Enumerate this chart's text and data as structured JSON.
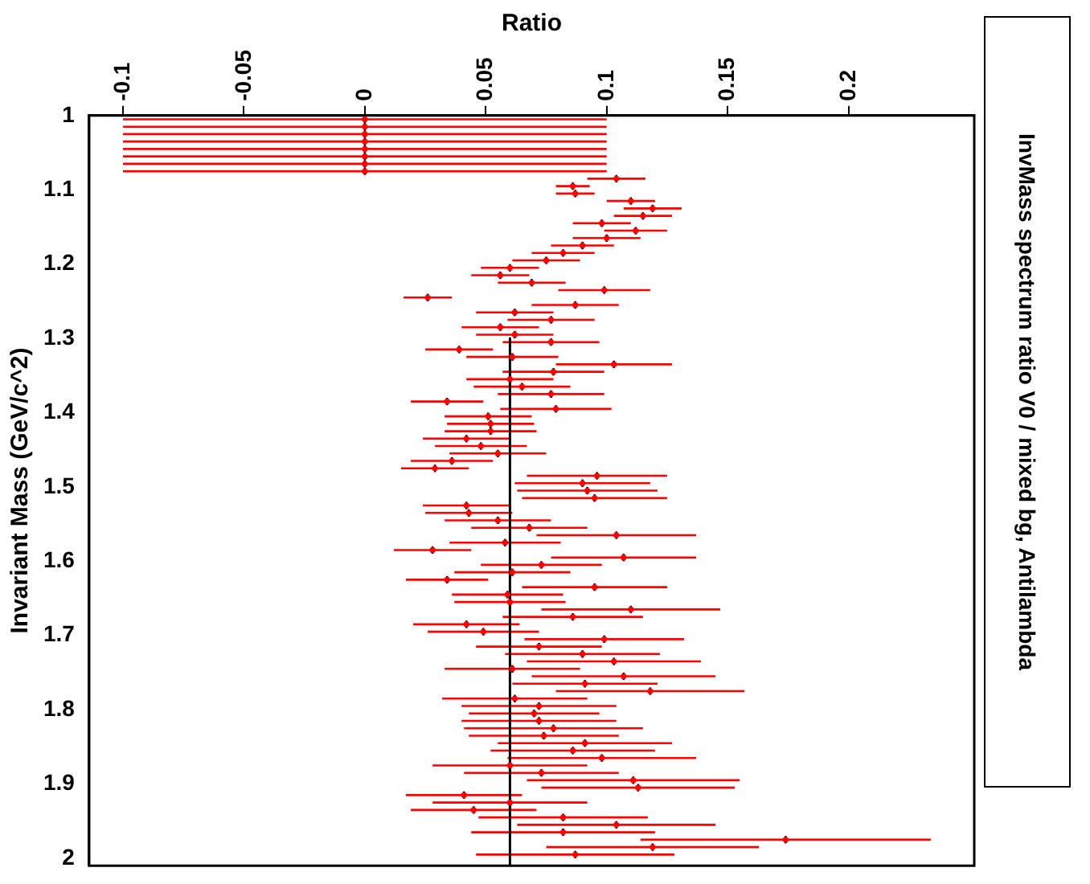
{
  "chart_data": {
    "type": "scatter",
    "orientation": "horizontal",
    "title": "InvMass spectrum ratio V0 / mixed bg, Antilambda",
    "xlabel": "Ratio",
    "ylabel": "Invariant Mass (GeV/c^2)",
    "x": [
      1.005,
      1.015,
      1.025,
      1.035,
      1.045,
      1.055,
      1.065,
      1.075,
      1.085,
      1.095,
      1.105,
      1.115,
      1.125,
      1.135,
      1.145,
      1.155,
      1.165,
      1.175,
      1.185,
      1.195,
      1.205,
      1.215,
      1.225,
      1.235,
      1.245,
      1.255,
      1.265,
      1.275,
      1.285,
      1.295,
      1.305,
      1.315,
      1.325,
      1.335,
      1.345,
      1.355,
      1.365,
      1.375,
      1.385,
      1.395,
      1.405,
      1.415,
      1.425,
      1.435,
      1.445,
      1.455,
      1.465,
      1.475,
      1.485,
      1.495,
      1.505,
      1.515,
      1.525,
      1.535,
      1.545,
      1.555,
      1.565,
      1.575,
      1.585,
      1.595,
      1.605,
      1.615,
      1.625,
      1.635,
      1.645,
      1.655,
      1.665,
      1.675,
      1.685,
      1.695,
      1.705,
      1.715,
      1.725,
      1.735,
      1.745,
      1.755,
      1.765,
      1.775,
      1.785,
      1.795,
      1.805,
      1.815,
      1.825,
      1.835,
      1.845,
      1.855,
      1.865,
      1.875,
      1.885,
      1.895,
      1.905,
      1.915,
      1.925,
      1.935,
      1.945,
      1.955,
      1.965,
      1.975,
      1.985,
      1.995
    ],
    "xlim": [
      -0.114,
      0.252
    ],
    "xticks": [
      -0.1,
      -0.05,
      0,
      0.05,
      0.1,
      0.15,
      0.2
    ],
    "ylim": [
      2.01,
      1
    ],
    "yticks": [
      1,
      1.1,
      1.2,
      1.3,
      1.4,
      1.5,
      1.6,
      1.7,
      1.8,
      1.9,
      2
    ],
    "series": [
      {
        "color": "#ff0000",
        "values": [
          0,
          0,
          0,
          0,
          0,
          0,
          0,
          0,
          0.104,
          0.086,
          0.087,
          0.11,
          0.119,
          0.115,
          0.098,
          0.112,
          0.1,
          0.09,
          0.082,
          0.075,
          0.06,
          0.056,
          0.069,
          0.099,
          0.026,
          0.087,
          0.062,
          0.077,
          0.056,
          0.062,
          0.077,
          0.039,
          0.061,
          0.103,
          0.078,
          0.06,
          0.065,
          0.077,
          0.034,
          0.079,
          0.051,
          0.052,
          0.052,
          0.042,
          0.048,
          0.055,
          0.036,
          0.029,
          0.096,
          0.09,
          0.092,
          0.095,
          0.042,
          0.043,
          0.055,
          0.068,
          0.104,
          0.058,
          0.028,
          0.107,
          0.073,
          0.061,
          0.034,
          0.095,
          0.059,
          0.06,
          0.11,
          0.086,
          0.042,
          0.049,
          0.099,
          0.072,
          0.09,
          0.103,
          0.061,
          0.107,
          0.091,
          0.118,
          0.062,
          0.072,
          0.07,
          0.072,
          0.078,
          0.074,
          0.091,
          0.086,
          0.098,
          0.06,
          0.073,
          0.111,
          0.113,
          0.041,
          0.06,
          0.045,
          0.082,
          0.104,
          0.082,
          0.174,
          0.119,
          0.087
        ],
        "errors": [
          0.1,
          0.1,
          0.1,
          0.1,
          0.1,
          0.1,
          0.1,
          0.1,
          0.012,
          0.007,
          0.008,
          0.01,
          0.012,
          0.012,
          0.012,
          0.013,
          0.014,
          0.013,
          0.013,
          0.014,
          0.012,
          0.012,
          0.014,
          0.019,
          0.01,
          0.018,
          0.016,
          0.018,
          0.016,
          0.016,
          0.02,
          0.014,
          0.019,
          0.024,
          0.021,
          0.018,
          0.02,
          0.022,
          0.015,
          0.023,
          0.018,
          0.018,
          0.019,
          0.018,
          0.019,
          0.02,
          0.017,
          0.014,
          0.029,
          0.028,
          0.029,
          0.03,
          0.018,
          0.018,
          0.022,
          0.024,
          0.033,
          0.023,
          0.016,
          0.03,
          0.025,
          0.024,
          0.017,
          0.03,
          0.023,
          0.023,
          0.037,
          0.029,
          0.022,
          0.023,
          0.033,
          0.026,
          0.032,
          0.036,
          0.028,
          0.038,
          0.03,
          0.039,
          0.03,
          0.032,
          0.027,
          0.032,
          0.037,
          0.031,
          0.036,
          0.034,
          0.039,
          0.032,
          0.032,
          0.044,
          0.04,
          0.024,
          0.032,
          0.026,
          0.035,
          0.041,
          0.038,
          0.06,
          0.044,
          0.041
        ],
        "xerrors": [
          0.005,
          0.005,
          0.005,
          0.005,
          0.005,
          0.005,
          0.005,
          0.005,
          0.005,
          0.005,
          0.005,
          0.005,
          0.005,
          0.005,
          0.005,
          0.005,
          0.005,
          0.005,
          0.005,
          0.005,
          0.005,
          0.005,
          0.005,
          0.005,
          0.005,
          0.005,
          0.005,
          0.005,
          0.005,
          0.005,
          0.005,
          0.005,
          0.005,
          0.005,
          0.005,
          0.005,
          0.005,
          0.005,
          0.005,
          0.005,
          0.005,
          0.005,
          0.005,
          0.005,
          0.005,
          0.005,
          0.005,
          0.005,
          0.005,
          0.005,
          0.005,
          0.005,
          0.005,
          0.005,
          0.005,
          0.005,
          0.005,
          0.005,
          0.005,
          0.005,
          0.005,
          0.005,
          0.005,
          0.005,
          0.005,
          0.005,
          0.005,
          0.005,
          0.005,
          0.005,
          0.005,
          0.005,
          0.005,
          0.005,
          0.005,
          0.005,
          0.005,
          0.005,
          0.005,
          0.005,
          0.005,
          0.005,
          0.005,
          0.005,
          0.005,
          0.005,
          0.005,
          0.005,
          0.005,
          0.005,
          0.005,
          0.005,
          0.005,
          0.005,
          0.005,
          0.005,
          0.005,
          0.005,
          0.005,
          0.005
        ]
      },
      {
        "type": "line",
        "color": "#000000",
        "x": [
          1.3,
          2.01
        ],
        "values": [
          0.06,
          0.06
        ]
      }
    ]
  }
}
